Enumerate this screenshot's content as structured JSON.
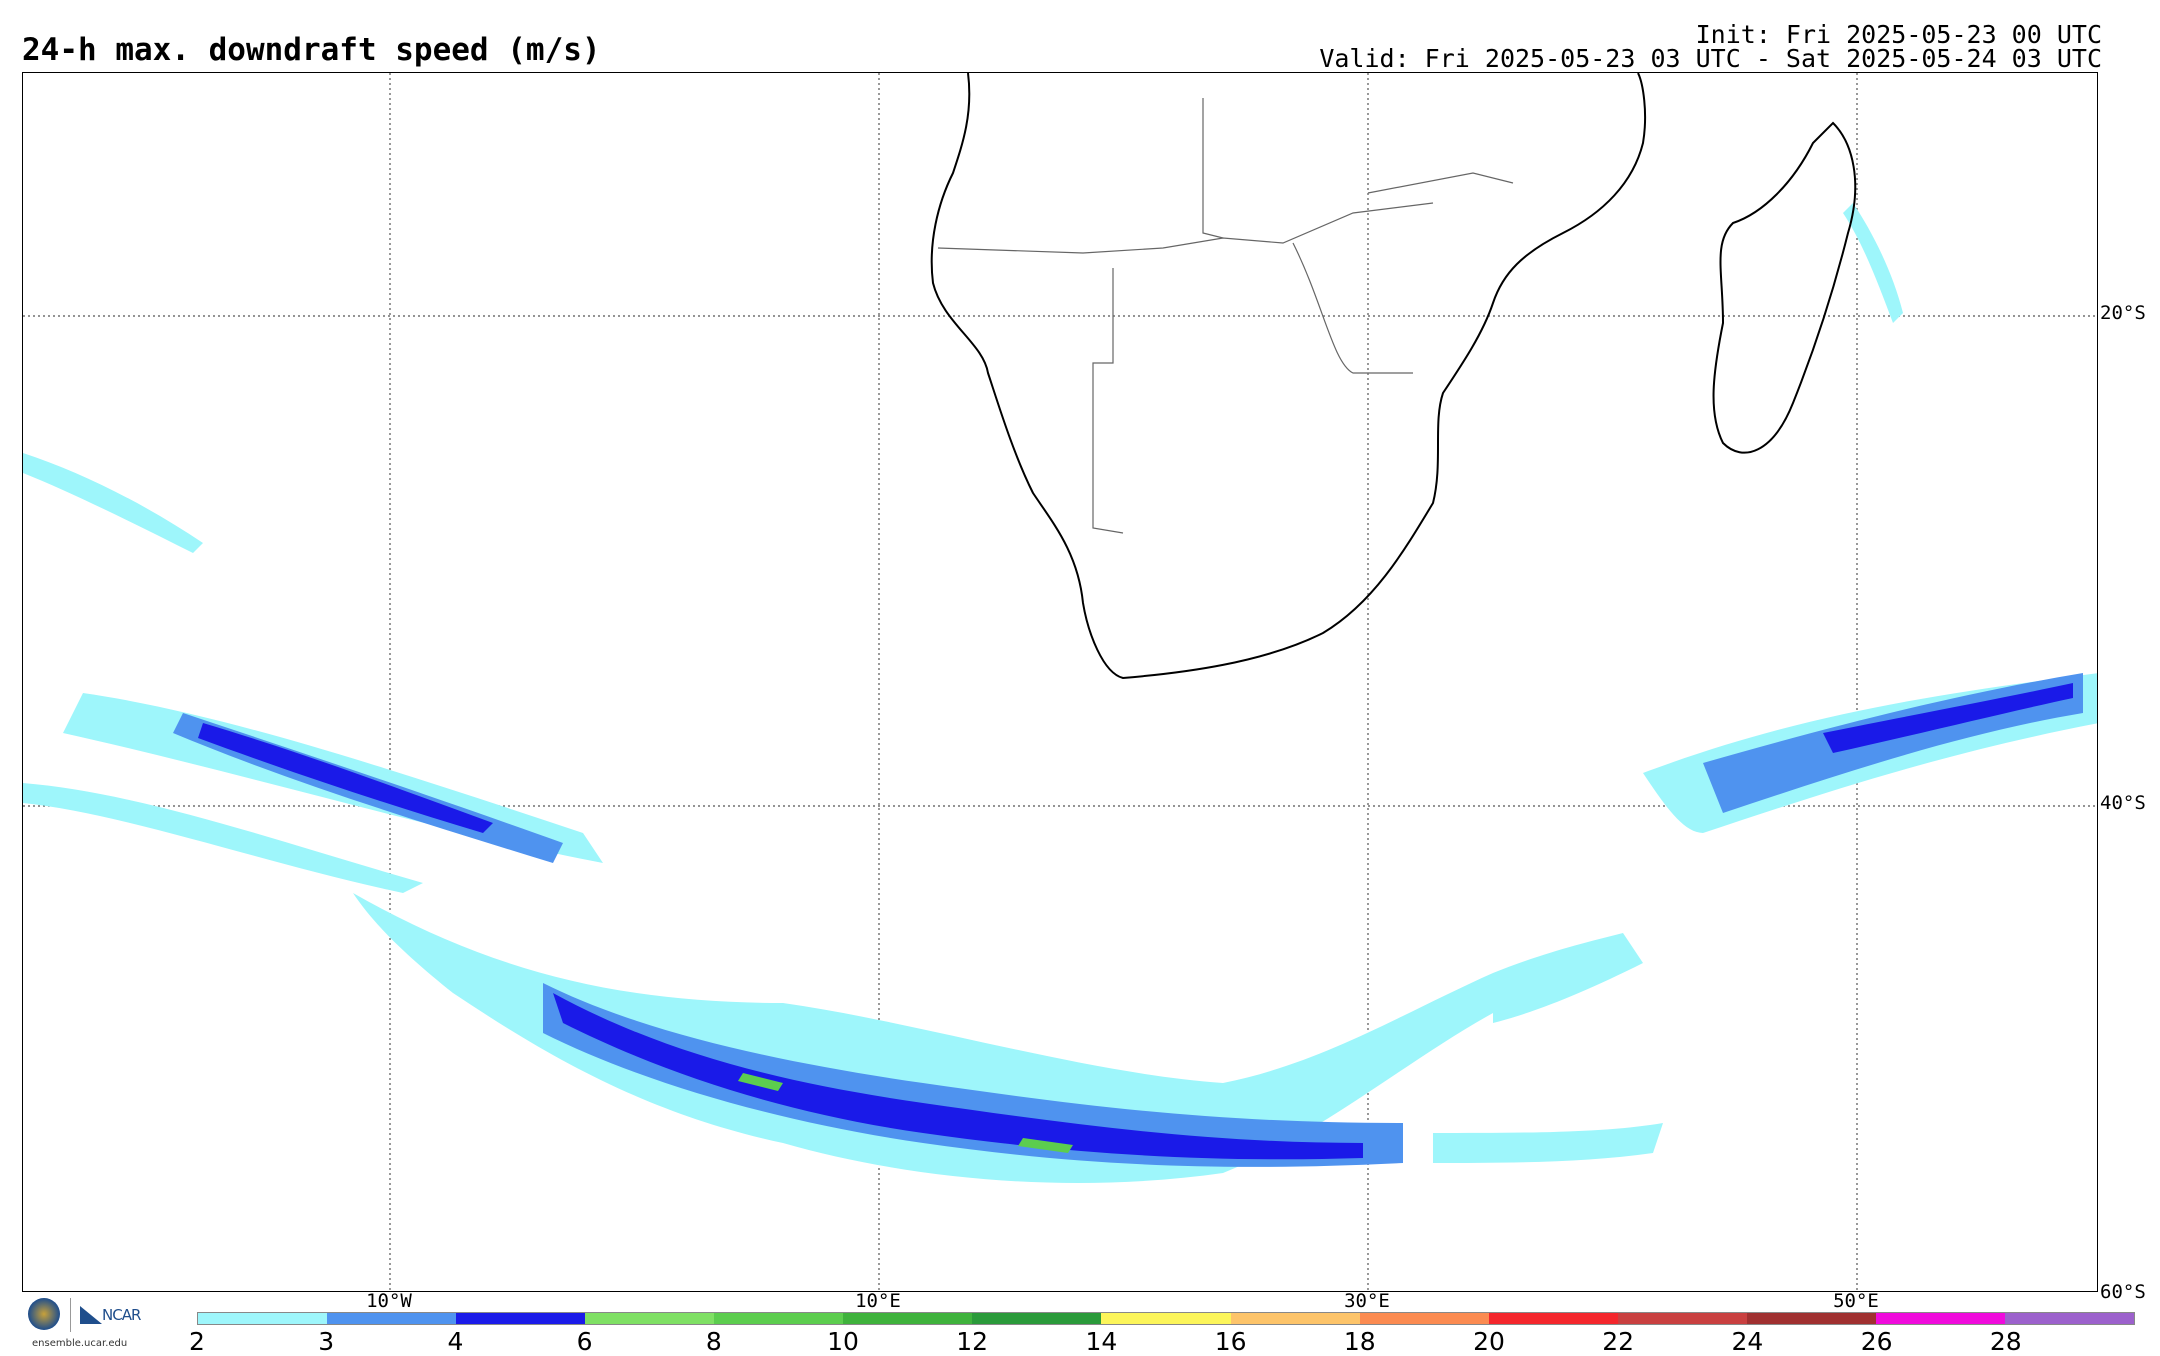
{
  "header": {
    "title": "24-h max. downdraft speed (m/s)",
    "init": "Init: Fri 2025-05-23 00 UTC",
    "valid": "Valid: Fri 2025-05-23 03 UTC - Sat 2025-05-24 03 UTC"
  },
  "map": {
    "region": "Southern Africa and South Atlantic / Indian Ocean",
    "lat_labels": [
      "20°S",
      "40°S",
      "60°S"
    ],
    "lon_labels": [
      "10°W",
      "10°E",
      "30°E",
      "50°E"
    ],
    "gridlines": "dotted",
    "field_colors": {
      "2-3": "#9ef6fb",
      "3-4": "#4f93ef",
      "4-6": "#1a1ae8",
      "8-10": "#5ccd4e"
    }
  },
  "colorbar": {
    "ticks": [
      "2",
      "3",
      "4",
      "6",
      "8",
      "10",
      "12",
      "14",
      "16",
      "18",
      "20",
      "22",
      "24",
      "26",
      "28"
    ],
    "colors": [
      "#9ef6fb",
      "#4f93ef",
      "#1a1ae8",
      "#7fe064",
      "#5ccd4e",
      "#3fb23c",
      "#2a9a3a",
      "#fcf55a",
      "#fdc46a",
      "#fb8b51",
      "#f4262c",
      "#c94040",
      "#a03030",
      "#f00adc",
      "#9c61cc"
    ]
  },
  "branding": {
    "org": "NCAR",
    "url": "ensemble.ucar.edu"
  }
}
